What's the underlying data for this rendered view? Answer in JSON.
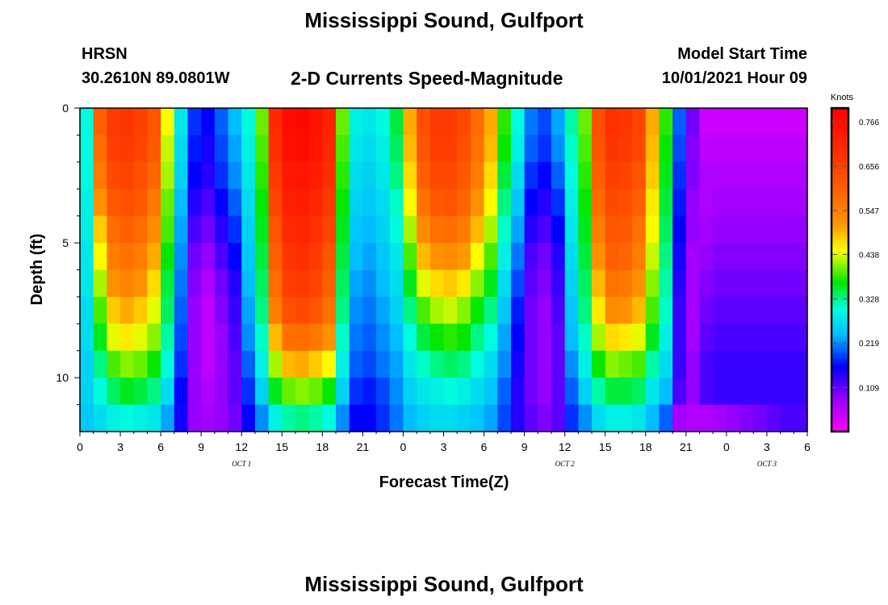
{
  "header": {
    "title": "Mississippi Sound, Gulfport",
    "station_code": "HRSN",
    "station_coords": "30.2610N  89.0801W",
    "product_title": "2-D Currents Speed-Magnitude",
    "model_start_label": "Model Start Time",
    "model_start_value": "10/01/2021 Hour 09"
  },
  "footer": {
    "title": "Mississippi Sound, Gulfport"
  },
  "chart_data": {
    "type": "heatmap",
    "xlabel": "Forecast Time(Z)",
    "ylabel": "Depth (ft)",
    "xlim": [
      0,
      54
    ],
    "ylim": [
      12,
      0
    ],
    "x_units": "hours from 00Z Oct 1",
    "x_tick_values": [
      0,
      3,
      6,
      9,
      12,
      15,
      18,
      21,
      24,
      27,
      30,
      33,
      36,
      39,
      42,
      45,
      48,
      51,
      54
    ],
    "x_tick_labels": [
      "0",
      "3",
      "6",
      "9",
      "12",
      "15",
      "18",
      "21",
      "0",
      "3",
      "6",
      "9",
      "12",
      "15",
      "18",
      "21",
      "0",
      "3",
      "6"
    ],
    "day_labels": [
      {
        "x": 12,
        "label": "OCT 1"
      },
      {
        "x": 36,
        "label": "OCT 2"
      },
      {
        "x": 51,
        "label": "OCT 3"
      }
    ],
    "y_tick_values": [
      0,
      5,
      10
    ],
    "y_tick_labels": [
      "0",
      "5",
      "10"
    ],
    "colorbar": {
      "unit": "Knots",
      "min": 0.0,
      "max": 0.8,
      "tick_values": [
        0.766,
        0.656,
        0.547,
        0.438,
        0.328,
        0.219,
        0.109
      ],
      "tick_labels": [
        "0.766",
        "0.656",
        "0.547",
        "0.438",
        "0.328",
        "0.219",
        "0.109"
      ]
    },
    "grid": false,
    "depths_ft": [
      0.5,
      1.5,
      2.5,
      3.5,
      4.5,
      5.5,
      6.5,
      7.5,
      8.5,
      9.5,
      10.5,
      11.5
    ],
    "times_hr": [
      0,
      1,
      2,
      3,
      4,
      5,
      6,
      7,
      8,
      9,
      10,
      11,
      12,
      13,
      14,
      15,
      16,
      17,
      18,
      19,
      20,
      21,
      22,
      23,
      24,
      25,
      26,
      27,
      28,
      29,
      30,
      31,
      32,
      33,
      34,
      35,
      36,
      37,
      38,
      39,
      40,
      41,
      42,
      43,
      44,
      45,
      46,
      47,
      48,
      49,
      50,
      51,
      52,
      53
    ],
    "speed_knots": [
      [
        0.3,
        0.6,
        0.67,
        0.68,
        0.66,
        0.62,
        0.45,
        0.28,
        0.18,
        0.16,
        0.2,
        0.24,
        0.3,
        0.4,
        0.7,
        0.77,
        0.78,
        0.76,
        0.72,
        0.4,
        0.29,
        0.28,
        0.3,
        0.35,
        0.5,
        0.63,
        0.67,
        0.67,
        0.64,
        0.58,
        0.5,
        0.38,
        0.3,
        0.21,
        0.19,
        0.23,
        0.32,
        0.4,
        0.63,
        0.69,
        0.68,
        0.65,
        0.5,
        0.38,
        0.2,
        0.1,
        0.04,
        0.04,
        0.04,
        0.04,
        0.04,
        0.04,
        0.04,
        0.04
      ],
      [
        0.3,
        0.58,
        0.66,
        0.67,
        0.65,
        0.61,
        0.43,
        0.27,
        0.17,
        0.15,
        0.19,
        0.23,
        0.29,
        0.39,
        0.69,
        0.76,
        0.77,
        0.75,
        0.71,
        0.39,
        0.28,
        0.27,
        0.29,
        0.34,
        0.49,
        0.62,
        0.66,
        0.66,
        0.63,
        0.57,
        0.49,
        0.37,
        0.29,
        0.2,
        0.18,
        0.22,
        0.31,
        0.39,
        0.62,
        0.68,
        0.67,
        0.64,
        0.49,
        0.37,
        0.19,
        0.09,
        0.05,
        0.05,
        0.05,
        0.05,
        0.05,
        0.05,
        0.05,
        0.05
      ],
      [
        0.3,
        0.56,
        0.64,
        0.65,
        0.63,
        0.59,
        0.42,
        0.26,
        0.16,
        0.14,
        0.18,
        0.22,
        0.28,
        0.38,
        0.67,
        0.74,
        0.75,
        0.73,
        0.69,
        0.38,
        0.27,
        0.26,
        0.28,
        0.33,
        0.47,
        0.6,
        0.64,
        0.64,
        0.61,
        0.55,
        0.47,
        0.35,
        0.27,
        0.18,
        0.16,
        0.2,
        0.3,
        0.38,
        0.6,
        0.66,
        0.65,
        0.62,
        0.48,
        0.36,
        0.18,
        0.09,
        0.06,
        0.06,
        0.06,
        0.06,
        0.06,
        0.06,
        0.06,
        0.06
      ],
      [
        0.29,
        0.52,
        0.61,
        0.63,
        0.61,
        0.56,
        0.4,
        0.24,
        0.14,
        0.12,
        0.16,
        0.2,
        0.27,
        0.37,
        0.65,
        0.72,
        0.73,
        0.71,
        0.67,
        0.37,
        0.26,
        0.25,
        0.27,
        0.31,
        0.45,
        0.57,
        0.61,
        0.62,
        0.59,
        0.52,
        0.45,
        0.33,
        0.25,
        0.16,
        0.14,
        0.18,
        0.29,
        0.37,
        0.58,
        0.64,
        0.63,
        0.6,
        0.46,
        0.35,
        0.17,
        0.08,
        0.06,
        0.07,
        0.07,
        0.07,
        0.07,
        0.07,
        0.07,
        0.07
      ],
      [
        0.29,
        0.48,
        0.58,
        0.6,
        0.58,
        0.53,
        0.39,
        0.23,
        0.12,
        0.1,
        0.14,
        0.18,
        0.26,
        0.36,
        0.62,
        0.7,
        0.71,
        0.69,
        0.65,
        0.36,
        0.25,
        0.24,
        0.26,
        0.3,
        0.42,
        0.53,
        0.57,
        0.58,
        0.55,
        0.49,
        0.42,
        0.31,
        0.23,
        0.14,
        0.12,
        0.16,
        0.28,
        0.36,
        0.55,
        0.62,
        0.61,
        0.57,
        0.45,
        0.34,
        0.16,
        0.08,
        0.07,
        0.08,
        0.08,
        0.08,
        0.08,
        0.08,
        0.08,
        0.08
      ],
      [
        0.28,
        0.45,
        0.55,
        0.57,
        0.55,
        0.5,
        0.37,
        0.22,
        0.1,
        0.08,
        0.12,
        0.16,
        0.25,
        0.35,
        0.6,
        0.68,
        0.69,
        0.67,
        0.62,
        0.35,
        0.24,
        0.23,
        0.25,
        0.28,
        0.39,
        0.49,
        0.52,
        0.53,
        0.51,
        0.45,
        0.39,
        0.29,
        0.21,
        0.12,
        0.1,
        0.14,
        0.27,
        0.35,
        0.52,
        0.6,
        0.59,
        0.55,
        0.43,
        0.33,
        0.15,
        0.07,
        0.08,
        0.09,
        0.09,
        0.09,
        0.09,
        0.09,
        0.09,
        0.09
      ],
      [
        0.28,
        0.42,
        0.52,
        0.54,
        0.52,
        0.47,
        0.35,
        0.21,
        0.09,
        0.06,
        0.1,
        0.14,
        0.24,
        0.34,
        0.58,
        0.66,
        0.67,
        0.65,
        0.6,
        0.34,
        0.23,
        0.22,
        0.24,
        0.27,
        0.36,
        0.44,
        0.47,
        0.48,
        0.46,
        0.41,
        0.36,
        0.27,
        0.19,
        0.11,
        0.09,
        0.13,
        0.26,
        0.34,
        0.49,
        0.57,
        0.56,
        0.52,
        0.41,
        0.32,
        0.14,
        0.07,
        0.09,
        0.1,
        0.1,
        0.1,
        0.1,
        0.1,
        0.1,
        0.1
      ],
      [
        0.27,
        0.39,
        0.48,
        0.5,
        0.48,
        0.44,
        0.34,
        0.2,
        0.08,
        0.05,
        0.09,
        0.13,
        0.23,
        0.33,
        0.55,
        0.63,
        0.64,
        0.62,
        0.57,
        0.33,
        0.22,
        0.21,
        0.23,
        0.26,
        0.33,
        0.39,
        0.42,
        0.43,
        0.41,
        0.37,
        0.33,
        0.25,
        0.17,
        0.1,
        0.08,
        0.12,
        0.25,
        0.33,
        0.46,
        0.53,
        0.52,
        0.49,
        0.39,
        0.31,
        0.13,
        0.07,
        0.1,
        0.11,
        0.11,
        0.11,
        0.11,
        0.11,
        0.11,
        0.11
      ],
      [
        0.27,
        0.36,
        0.44,
        0.46,
        0.44,
        0.41,
        0.32,
        0.19,
        0.08,
        0.05,
        0.08,
        0.12,
        0.22,
        0.31,
        0.49,
        0.57,
        0.58,
        0.56,
        0.52,
        0.31,
        0.21,
        0.2,
        0.22,
        0.24,
        0.3,
        0.35,
        0.37,
        0.38,
        0.37,
        0.33,
        0.3,
        0.23,
        0.16,
        0.1,
        0.08,
        0.11,
        0.24,
        0.31,
        0.42,
        0.47,
        0.46,
        0.44,
        0.36,
        0.29,
        0.13,
        0.07,
        0.11,
        0.12,
        0.12,
        0.12,
        0.12,
        0.12,
        0.12,
        0.12
      ],
      [
        0.26,
        0.33,
        0.39,
        0.41,
        0.4,
        0.37,
        0.3,
        0.18,
        0.08,
        0.05,
        0.08,
        0.11,
        0.2,
        0.29,
        0.42,
        0.49,
        0.5,
        0.48,
        0.45,
        0.29,
        0.2,
        0.19,
        0.21,
        0.23,
        0.28,
        0.31,
        0.33,
        0.34,
        0.33,
        0.3,
        0.27,
        0.22,
        0.15,
        0.1,
        0.08,
        0.11,
        0.22,
        0.29,
        0.37,
        0.41,
        0.4,
        0.39,
        0.32,
        0.27,
        0.13,
        0.08,
        0.12,
        0.13,
        0.13,
        0.13,
        0.13,
        0.13,
        0.13,
        0.13
      ],
      [
        0.26,
        0.3,
        0.34,
        0.36,
        0.35,
        0.33,
        0.27,
        0.16,
        0.08,
        0.06,
        0.08,
        0.11,
        0.18,
        0.26,
        0.36,
        0.4,
        0.41,
        0.4,
        0.37,
        0.26,
        0.18,
        0.17,
        0.19,
        0.22,
        0.26,
        0.28,
        0.29,
        0.3,
        0.29,
        0.27,
        0.25,
        0.2,
        0.14,
        0.1,
        0.08,
        0.11,
        0.2,
        0.26,
        0.32,
        0.35,
        0.35,
        0.34,
        0.28,
        0.24,
        0.12,
        0.08,
        0.12,
        0.13,
        0.13,
        0.13,
        0.13,
        0.13,
        0.13,
        0.13
      ],
      [
        0.25,
        0.27,
        0.29,
        0.3,
        0.29,
        0.28,
        0.23,
        0.15,
        0.08,
        0.07,
        0.08,
        0.1,
        0.16,
        0.22,
        0.29,
        0.32,
        0.33,
        0.32,
        0.3,
        0.22,
        0.16,
        0.16,
        0.18,
        0.21,
        0.24,
        0.26,
        0.27,
        0.27,
        0.26,
        0.25,
        0.23,
        0.19,
        0.14,
        0.11,
        0.09,
        0.11,
        0.18,
        0.22,
        0.27,
        0.29,
        0.29,
        0.28,
        0.24,
        0.2,
        0.07,
        0.06,
        0.06,
        0.07,
        0.08,
        0.09,
        0.1,
        0.11,
        0.12,
        0.12
      ]
    ]
  }
}
